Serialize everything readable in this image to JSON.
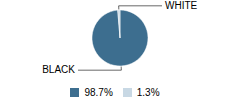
{
  "chart_data": {
    "type": "pie",
    "categories": [
      "BLACK",
      "WHITE"
    ],
    "values": [
      98.7,
      1.3
    ],
    "value_labels": [
      "98.7%",
      "1.3%"
    ],
    "colors": [
      "#3d6e8f",
      "#c8d8e4"
    ],
    "legend": "bottom"
  }
}
